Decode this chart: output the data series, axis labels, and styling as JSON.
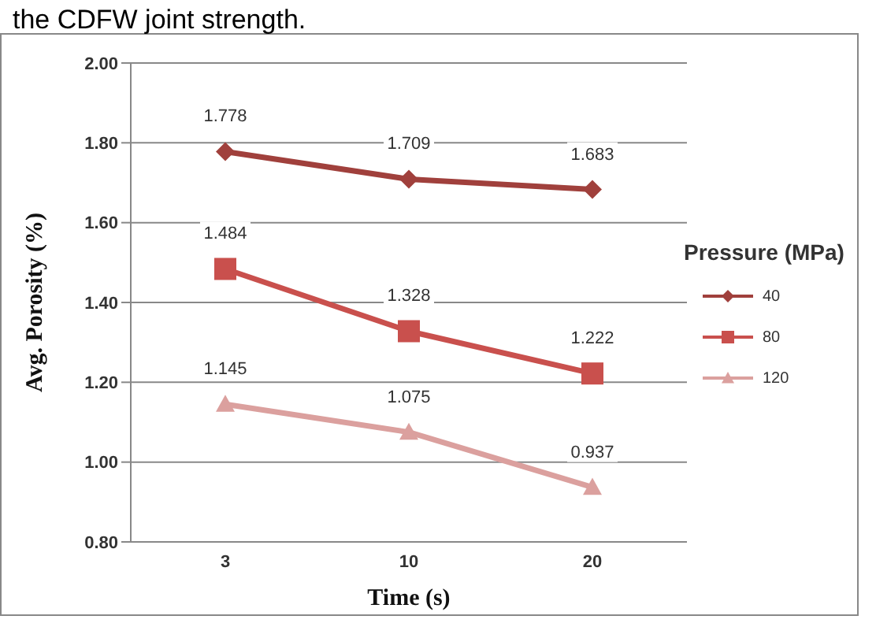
{
  "chart_data": {
    "type": "line",
    "annotations": [
      "the CDFW joint strength."
    ],
    "xlabel": "Time (s)",
    "ylabel": "Avg. Porosity (%)",
    "legend_title": "Pressure (MPa)",
    "categories": [
      "3",
      "10",
      "20"
    ],
    "series": [
      {
        "name": "40",
        "color": "#a0403c",
        "marker": "diamond",
        "values": [
          1.778,
          1.709,
          1.683
        ]
      },
      {
        "name": "80",
        "color": "#c9504d",
        "marker": "square",
        "values": [
          1.484,
          1.328,
          1.222
        ]
      },
      {
        "name": "120",
        "color": "#dba09e",
        "marker": "triangle",
        "values": [
          1.145,
          1.075,
          0.937
        ]
      }
    ],
    "ylim": [
      0.8,
      2.0
    ],
    "yticks": [
      {
        "value": 0.8,
        "label": "0.80"
      },
      {
        "value": 1.0,
        "label": "1.00"
      },
      {
        "value": 1.2,
        "label": "1.20"
      },
      {
        "value": 1.4,
        "label": "1.40"
      },
      {
        "value": 1.6,
        "label": "1.60"
      },
      {
        "value": 1.8,
        "label": "1.80"
      },
      {
        "value": 2.0,
        "label": "2.00"
      }
    ],
    "grid": "y",
    "legend": "right",
    "data_labels": true,
    "line_style": "solid"
  }
}
